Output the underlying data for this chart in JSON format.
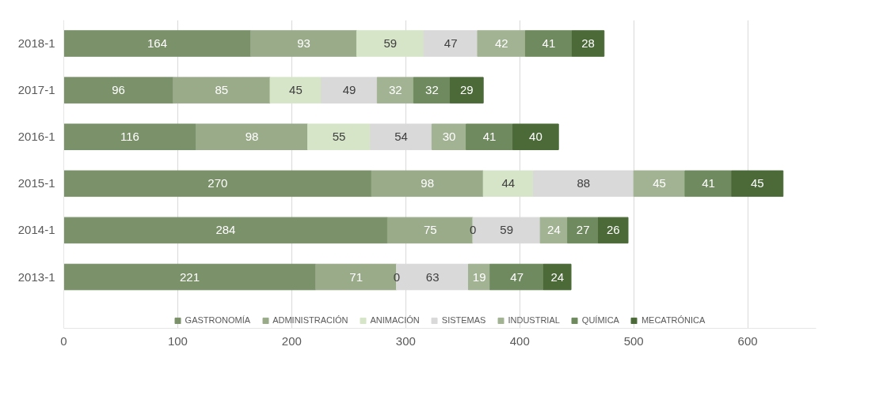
{
  "chart_data": {
    "type": "bar",
    "orientation": "horizontal",
    "stacked": true,
    "data_labels": true,
    "categories": [
      "2018-1",
      "2017-1",
      "2016-1",
      "2015-1",
      "2014-1",
      "2013-1"
    ],
    "series": [
      {
        "name": "GASTRONOMÍA",
        "color": "#7a916a",
        "values": [
          164,
          96,
          116,
          270,
          284,
          221
        ]
      },
      {
        "name": "ADMINISTRACIÓN",
        "color": "#9aab8a",
        "values": [
          93,
          85,
          98,
          98,
          75,
          71
        ]
      },
      {
        "name": "ANIMACIÓN",
        "color": "#d6e5c8",
        "values": [
          59,
          45,
          55,
          44,
          0,
          0
        ]
      },
      {
        "name": "SISTEMAS",
        "color": "#d9d9d9",
        "values": [
          47,
          49,
          54,
          88,
          59,
          63
        ]
      },
      {
        "name": "INDUSTRIAL",
        "color": "#a2b393",
        "values": [
          42,
          32,
          30,
          45,
          24,
          19
        ]
      },
      {
        "name": "QUÍMICA",
        "color": "#6f8a5e",
        "values": [
          41,
          32,
          41,
          41,
          27,
          47
        ]
      },
      {
        "name": "MECATRÓNICA",
        "color": "#4b6a38",
        "values": [
          28,
          29,
          40,
          45,
          26,
          24
        ]
      }
    ],
    "xlim": [
      0,
      660
    ],
    "xticks": [
      0,
      100,
      200,
      300,
      400,
      500,
      600
    ],
    "grid": "x",
    "legend": "bottom"
  }
}
